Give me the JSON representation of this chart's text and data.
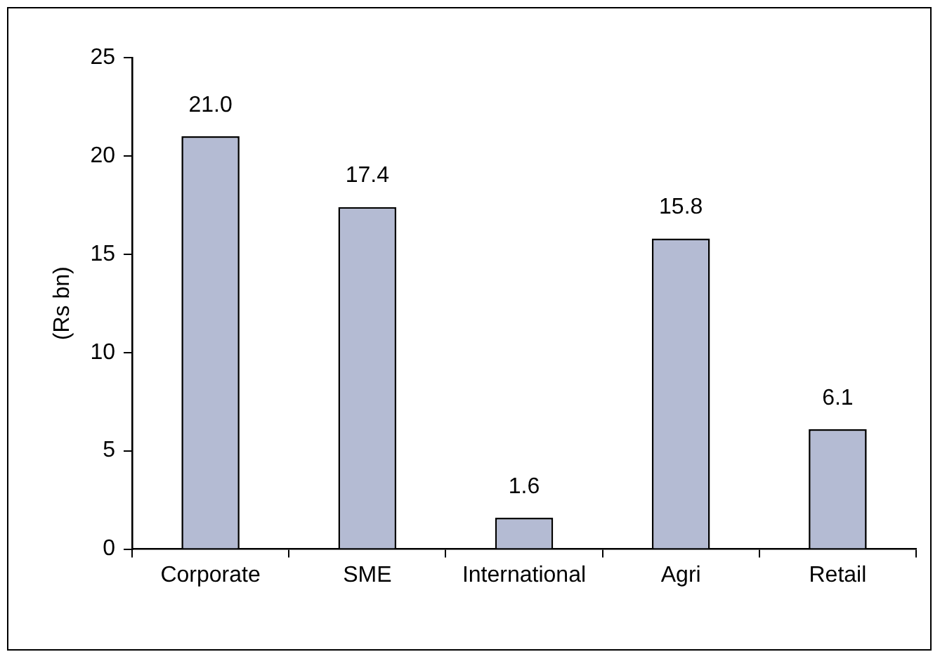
{
  "chart_data": {
    "type": "bar",
    "ylabel": "(Rs bn)",
    "categories": [
      "Corporate",
      "SME",
      "International",
      "Agri",
      "Retail"
    ],
    "values": [
      21.0,
      17.4,
      1.6,
      15.8,
      6.1
    ],
    "value_labels": [
      "21.0",
      "17.4",
      "1.6",
      "15.8",
      "6.1"
    ],
    "color": "#b4bbd3",
    "ylim": [
      0,
      25
    ],
    "yticks": [
      0,
      5,
      10,
      15,
      20,
      25
    ],
    "grid": false,
    "legend": false
  }
}
